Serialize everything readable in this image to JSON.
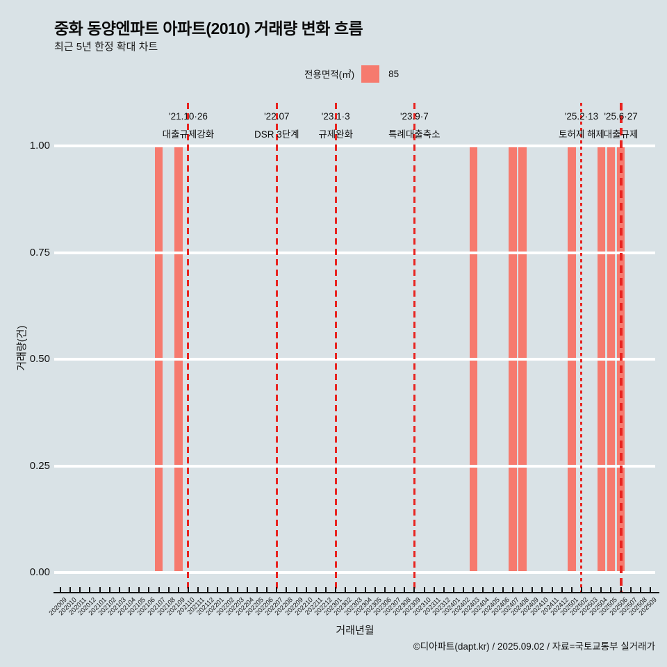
{
  "title": "중화 동양엔파트 아파트(2010) 거래량 변화 흐름",
  "subtitle": "최근 5년 한정 확대 차트",
  "legend": {
    "label": "전용면적(㎡)",
    "value": "85",
    "swatch_color": "#f67a6e"
  },
  "footer": "©디아파트(dapt.kr) / 2025.09.02 / 자료=국토교통부 실거래가",
  "colors": {
    "background": "#d9e2e6",
    "bar": "#f67a6e",
    "annotation_line": "#e82420",
    "gridline": "#ffffff",
    "text": "#111111"
  },
  "chart_data": {
    "type": "bar",
    "title": "중화 동양엔파트 아파트(2010) 거래량 변화 흐름",
    "xlabel": "거래년월",
    "ylabel": "거래량(건)",
    "ylim": [
      0,
      1
    ],
    "grid": true,
    "legend_position": "top-center",
    "legend_series": "85",
    "yticks": [
      "1.00",
      "0.75",
      "0.50",
      "0.25",
      "0.00"
    ],
    "ytick_values": [
      1.0,
      0.75,
      0.5,
      0.25,
      0.0
    ],
    "categories": [
      "202009",
      "202010",
      "202011",
      "202012",
      "202101",
      "202102",
      "202103",
      "202104",
      "202105",
      "202106",
      "202107",
      "202108",
      "202109",
      "202110",
      "202111",
      "202112",
      "202201",
      "202202",
      "202203",
      "202204",
      "202205",
      "202206",
      "202207",
      "202208",
      "202209",
      "202210",
      "202211",
      "202212",
      "202301",
      "202302",
      "202303",
      "202304",
      "202305",
      "202306",
      "202307",
      "202308",
      "202309",
      "202310",
      "202311",
      "202312",
      "202401",
      "202402",
      "202403",
      "202404",
      "202405",
      "202406",
      "202407",
      "202408",
      "202409",
      "202410",
      "202411",
      "202412",
      "202501",
      "202502",
      "202503",
      "202504",
      "202505",
      "202506",
      "202507",
      "202508",
      "202509"
    ],
    "values": [
      0,
      0,
      0,
      0,
      0,
      0,
      0,
      0,
      0,
      0,
      1,
      0,
      1,
      0,
      0,
      0,
      0,
      0,
      0,
      0,
      0,
      0,
      0,
      0,
      0,
      0,
      0,
      0,
      0,
      0,
      0,
      0,
      0,
      0,
      0,
      0,
      0,
      0,
      0,
      0,
      0,
      0,
      1,
      0,
      0,
      0,
      1,
      1,
      0,
      0,
      0,
      0,
      1,
      0,
      0,
      1,
      1,
      1,
      0,
      0,
      0
    ],
    "annotations": [
      {
        "month": "202110",
        "date": "'21.10·26",
        "label": "대출규제강화",
        "style": "dashed"
      },
      {
        "month": "202207",
        "date": "'22.07",
        "label": "DSR 3단계",
        "style": "dashed"
      },
      {
        "month": "202301",
        "date": "'23.1·3",
        "label": "규제완화",
        "style": "dashed"
      },
      {
        "month": "202309",
        "date": "'23.9·7",
        "label": "특례대출축소",
        "style": "dashed"
      },
      {
        "month": "202502",
        "date": "'25.2·13",
        "label": "토허제 해제",
        "style": "dotted"
      },
      {
        "month": "202506",
        "date": "'25.6·27",
        "label": "대출규제",
        "style": "dashed-bold"
      }
    ]
  }
}
